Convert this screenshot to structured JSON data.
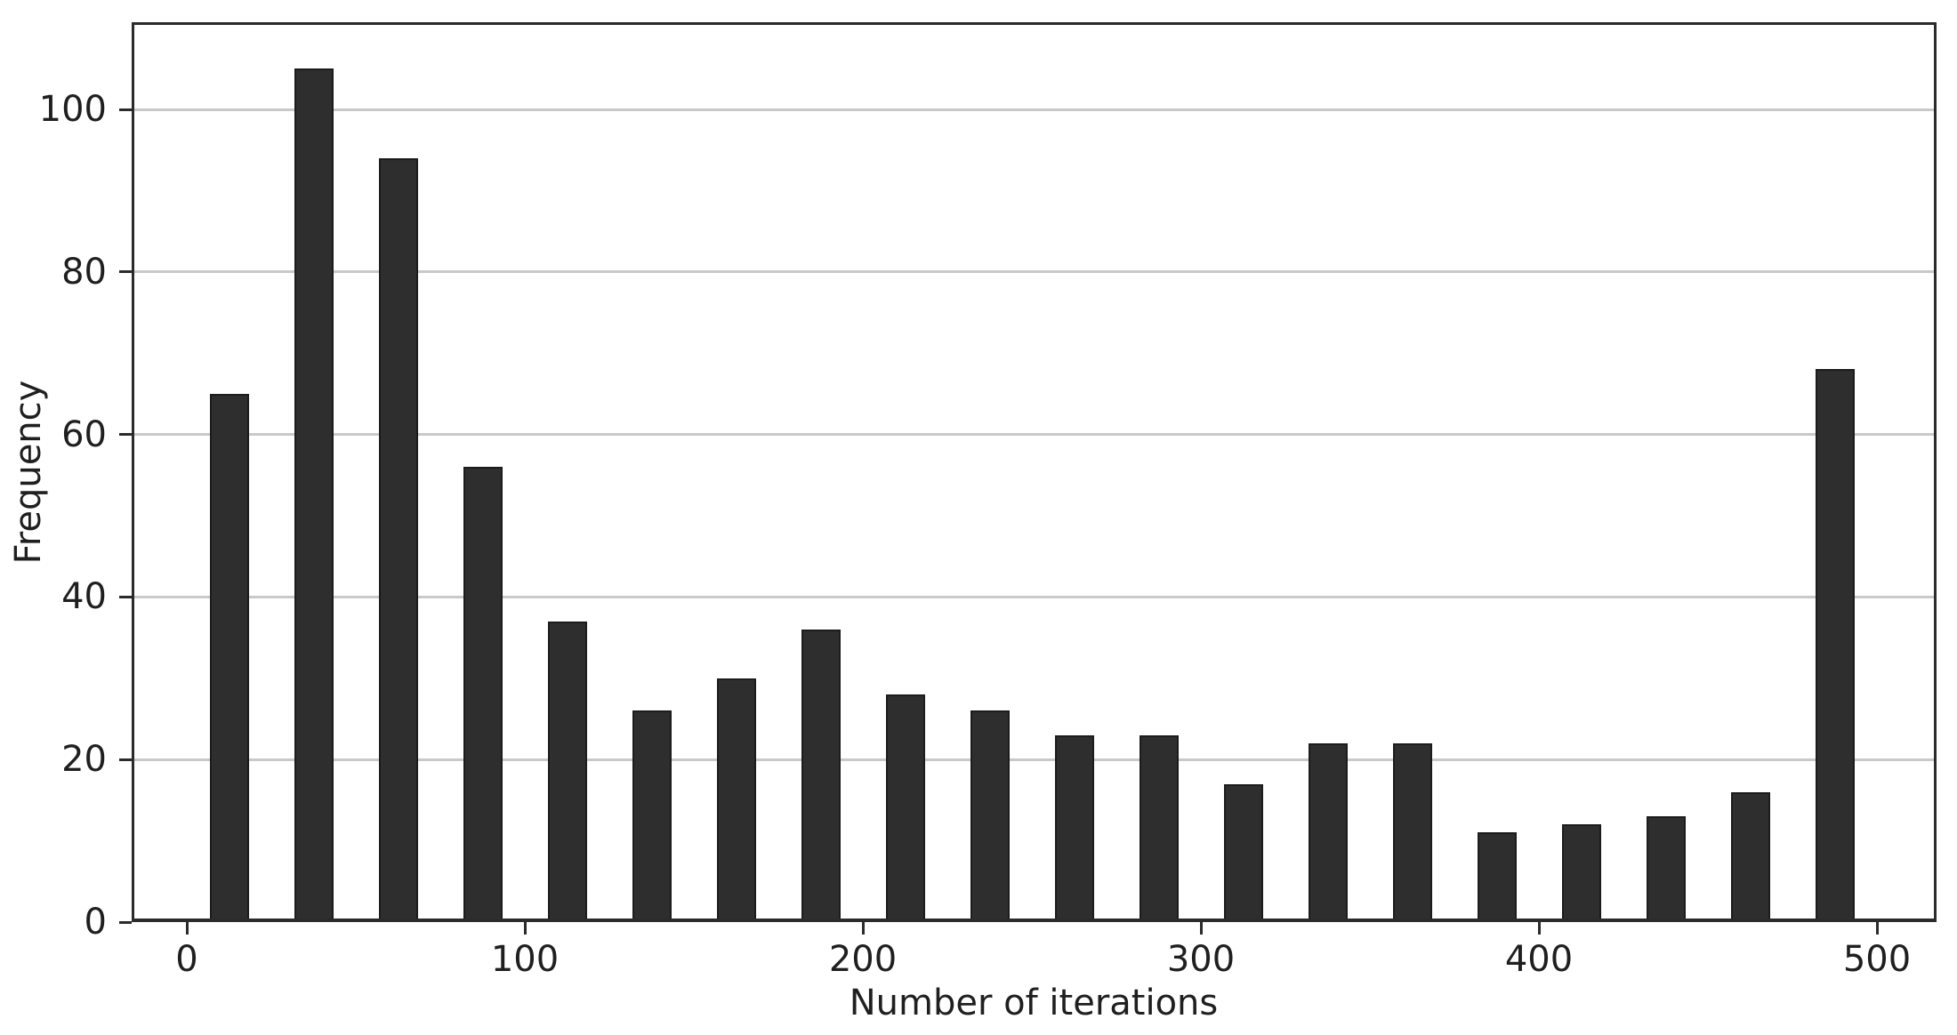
{
  "figure": {
    "background": "#ffffff"
  },
  "chart_data": {
    "type": "bar",
    "subtype": "histogram",
    "title": "",
    "xlabel": "Number of iterations",
    "ylabel": "Frequency",
    "bin_start": 0,
    "bin_end": 500,
    "bin_width": 25,
    "bin_centers": [
      12.5,
      37.5,
      62.5,
      87.5,
      112.5,
      137.5,
      162.5,
      187.5,
      212.5,
      237.5,
      262.5,
      287.5,
      312.5,
      337.5,
      362.5,
      387.5,
      412.5,
      437.5,
      462.5,
      487.5
    ],
    "values": [
      65,
      105,
      94,
      56,
      37,
      26,
      30,
      36,
      28,
      26,
      23,
      23,
      17,
      22,
      22,
      11,
      12,
      13,
      16,
      68
    ],
    "x_ticks": [
      0,
      100,
      200,
      300,
      400,
      500
    ],
    "y_ticks": [
      0,
      20,
      40,
      60,
      80,
      100
    ],
    "xlim": [
      -16,
      518
    ],
    "ylim": [
      0,
      110.7
    ],
    "grid": {
      "axis": "y",
      "style": "solid",
      "color": "#c9c9c9"
    },
    "legend": "none",
    "colors": {
      "bar_fill": "#2e2e2e",
      "bar_edge": "#1c1c1c",
      "spine": "#2b2b2b",
      "grid": "#c9c9c9",
      "text": "#1f1f1f",
      "background": "#ffffff"
    }
  }
}
